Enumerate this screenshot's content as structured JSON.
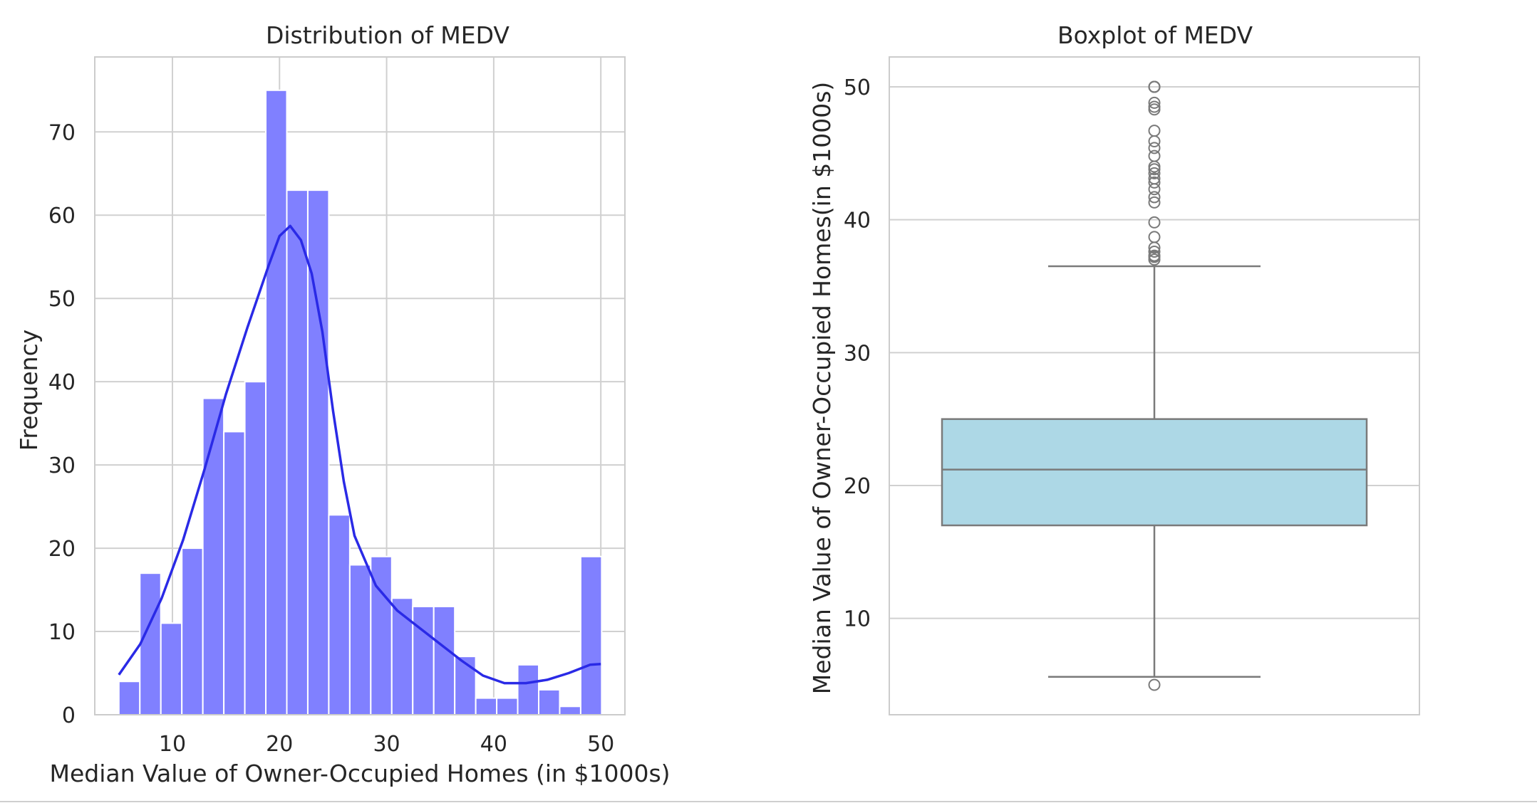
{
  "colors": {
    "hist_fill": "#8080ff",
    "kde_line": "#2a2ae6",
    "box_fill": "#add8e6",
    "box_line": "#7a7a7a",
    "grid": "#d0d0d0",
    "frame": "#cccccc"
  },
  "chart_data": [
    {
      "type": "bar",
      "title": "Distribution of MEDV",
      "xlabel": "Median Value of Owner-Occupied Homes (in $1000s)",
      "ylabel": "Frequency",
      "xlim": [
        2.75,
        52.25
      ],
      "ylim": [
        0,
        79
      ],
      "xticks": [
        10,
        20,
        30,
        40,
        50
      ],
      "yticks": [
        0,
        10,
        20,
        30,
        40,
        50,
        60,
        70
      ],
      "grid": true,
      "bin_edges": [
        5.0,
        6.96,
        8.92,
        10.88,
        12.84,
        14.8,
        16.76,
        18.72,
        20.68,
        22.64,
        24.6,
        26.56,
        28.52,
        30.48,
        32.44,
        34.4,
        36.36,
        38.32,
        40.28,
        42.24,
        44.2,
        46.16,
        48.12,
        50.08
      ],
      "counts": [
        4,
        17,
        11,
        20,
        38,
        34,
        40,
        75,
        63,
        63,
        24,
        18,
        19,
        14,
        13,
        13,
        7,
        2,
        2,
        6,
        3,
        1,
        19
      ],
      "kde": {
        "x": [
          5,
          7,
          9,
          11,
          13,
          15,
          17,
          19,
          20,
          21,
          22,
          23,
          24,
          25,
          26,
          27,
          29,
          31,
          33,
          35,
          37,
          39,
          41,
          43,
          45,
          47,
          49,
          50
        ],
        "y": [
          4.8,
          8.5,
          14.0,
          21.0,
          29.5,
          38.5,
          46.5,
          54.0,
          57.5,
          58.7,
          57.0,
          53.0,
          46.0,
          36.5,
          28.0,
          21.5,
          15.5,
          12.5,
          10.5,
          8.5,
          6.5,
          4.7,
          3.8,
          3.8,
          4.2,
          5.0,
          6.0,
          6.1
        ]
      }
    },
    {
      "type": "box",
      "title": "Boxplot of MEDV",
      "ylabel": "Median Value of Owner-Occupied Homes(in $1000s)",
      "ylim": [
        2.75,
        52.25
      ],
      "yticks": [
        10,
        20,
        30,
        40,
        50
      ],
      "grid": true,
      "q1": 17.0,
      "median": 21.2,
      "q3": 25.0,
      "whisker_low": 5.6,
      "whisker_high": 36.5,
      "outliers": [
        50.0,
        50.0,
        50.0,
        50.0,
        48.8,
        48.5,
        48.3,
        46.7,
        45.9,
        45.4,
        44.8,
        44.0,
        43.8,
        43.5,
        43.1,
        42.8,
        42.3,
        41.7,
        41.3,
        39.8,
        38.7,
        37.9,
        37.6,
        37.3,
        37.2,
        37.0,
        5.0
      ]
    }
  ]
}
